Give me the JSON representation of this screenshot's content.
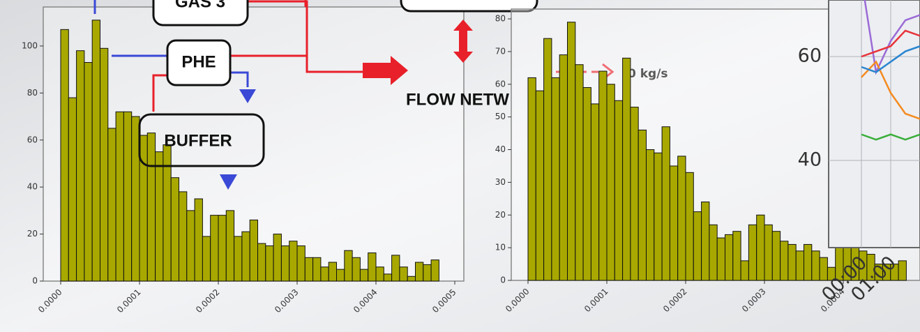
{
  "diagram": {
    "labels": [
      "GAS 3",
      "PHE",
      "BUFFER",
      "FLOW NETW",
      "0 kg/s"
    ]
  },
  "chart_data": [
    {
      "type": "histogram",
      "color": "#a8a800",
      "bins": [
        0,
        1e-05,
        2e-05,
        3e-05,
        4e-05,
        5e-05,
        6e-05,
        7e-05,
        8e-05,
        9e-05,
        0.0001,
        0.00011,
        0.00012,
        0.00013,
        0.00014,
        0.00015,
        0.00016,
        0.00017,
        0.00018,
        0.00019,
        0.0002,
        0.00021,
        0.00022,
        0.00023,
        0.00024,
        0.00025,
        0.00026,
        0.00027,
        0.00028,
        0.00029,
        0.0003,
        0.00031,
        0.00032,
        0.00033,
        0.00034,
        0.00035,
        0.00036,
        0.00037,
        0.00038,
        0.00039,
        0.0004,
        0.00041,
        0.00042,
        0.00043,
        0.00044,
        0.00045,
        0.00046,
        0.00047,
        0.00048
      ],
      "values": [
        107,
        78,
        98,
        93,
        111,
        99,
        65,
        72,
        72,
        70,
        62,
        63,
        55,
        58,
        44,
        38,
        30,
        35,
        19,
        28,
        28,
        30,
        19,
        21,
        26,
        16,
        15,
        20,
        15,
        17,
        15,
        10,
        10,
        6,
        8,
        5,
        13,
        10,
        5,
        12,
        6,
        3,
        11,
        6,
        2,
        8,
        7,
        9
      ],
      "xlim": [
        0,
        0.0005
      ],
      "ylim": [
        0,
        116
      ],
      "xticks": [
        {
          "value": 0,
          "label": "0.0000"
        },
        {
          "value": 0.0001,
          "label": "0.0001"
        },
        {
          "value": 0.0002,
          "label": "0.0002"
        },
        {
          "value": 0.0003,
          "label": "0.0003"
        },
        {
          "value": 0.0004,
          "label": "0.0004"
        },
        {
          "value": 0.0005,
          "label": "0.0005"
        }
      ],
      "yticks": [
        0,
        20,
        40,
        60,
        80,
        100
      ]
    },
    {
      "type": "histogram",
      "color": "#a8a800",
      "bins": [
        0,
        1e-05,
        2e-05,
        3e-05,
        4e-05,
        5e-05,
        6e-05,
        7e-05,
        8e-05,
        9e-05,
        0.0001,
        0.00011,
        0.00012,
        0.00013,
        0.00014,
        0.00015,
        0.00016,
        0.00017,
        0.00018,
        0.00019,
        0.0002,
        0.00021,
        0.00022,
        0.00023,
        0.00024,
        0.00025,
        0.00026,
        0.00027,
        0.00028,
        0.00029,
        0.0003,
        0.00031,
        0.00032,
        0.00033,
        0.00034,
        0.00035,
        0.00036,
        0.00037,
        0.00038,
        0.00039,
        0.0004,
        0.00041,
        0.00042,
        0.00043,
        0.00044,
        0.00045,
        0.00046,
        0.00047,
        0.00048
      ],
      "values": [
        62,
        58,
        74,
        62,
        69,
        79,
        66,
        59,
        54,
        64,
        60,
        55,
        68,
        53,
        46,
        40,
        39,
        47,
        35,
        38,
        33,
        21,
        24,
        17,
        13,
        14,
        15,
        6,
        17,
        20,
        17,
        15,
        12,
        11,
        9,
        11,
        9,
        7,
        4,
        10,
        11,
        10,
        9,
        8,
        5,
        5,
        5,
        6
      ],
      "xlim": [
        0,
        0.0004
      ],
      "ylim": [
        0,
        83
      ],
      "xticks": [
        {
          "value": 0,
          "label": "0.0000"
        },
        {
          "value": 0.0001,
          "label": "0.0001"
        },
        {
          "value": 0.0002,
          "label": "0.0002"
        },
        {
          "value": 0.0003,
          "label": "0.0003"
        },
        {
          "value": 0.0004,
          "label": "0.0004"
        }
      ],
      "yticks": [
        0,
        10,
        20,
        30,
        40,
        50,
        60,
        70,
        80
      ]
    },
    {
      "type": "line",
      "categories": [
        "00:00",
        null,
        "01:00",
        null,
        null
      ],
      "series": [
        {
          "color": "#9b6bd6",
          "values": [
            75,
            57,
            63,
            67,
            68
          ]
        },
        {
          "color": "#f58a1f",
          "values": [
            56,
            59,
            53,
            49,
            48
          ]
        },
        {
          "color": "#e8333a",
          "values": [
            60,
            61,
            62,
            65,
            64
          ]
        },
        {
          "color": "#2b86d0",
          "values": [
            58,
            57,
            59,
            61,
            62
          ]
        },
        {
          "color": "#3aae3a",
          "values": [
            45,
            44,
            45,
            44,
            45
          ]
        }
      ],
      "ylim": [
        23.2,
        70.9
      ],
      "yticks": [
        40,
        60
      ]
    }
  ]
}
